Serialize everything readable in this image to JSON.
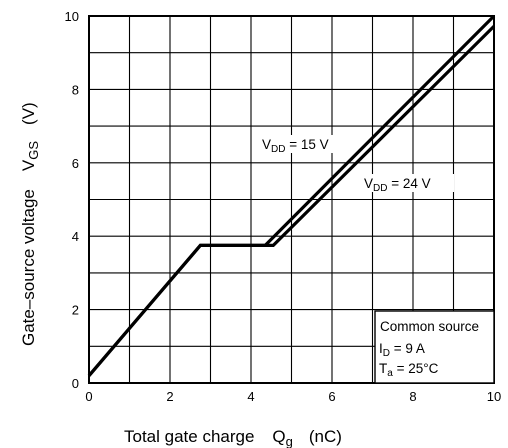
{
  "chart_data": {
    "type": "line",
    "xlabel": "Total gate charge",
    "xsymbol": {
      "main": "Q",
      "sub": "g"
    },
    "xunit": "(nC)",
    "ylabel": "Gate–source voltage",
    "ysymbol": {
      "main": "V",
      "sub": "GS"
    },
    "yunit": "(V)",
    "xlim": [
      0,
      10
    ],
    "ylim": [
      0,
      10
    ],
    "xticks": [
      0,
      2,
      4,
      6,
      8,
      10
    ],
    "yticks": [
      0,
      2,
      4,
      6,
      8,
      10
    ],
    "grid": true,
    "grid_step_x": 1,
    "grid_step_y": 1,
    "series": [
      {
        "id": "vdd15",
        "label": {
          "main": "V",
          "sub": "DD",
          "rest": " = 15 V"
        },
        "points": [
          [
            0,
            0.2
          ],
          [
            2.75,
            3.75
          ],
          [
            4.35,
            3.75
          ],
          [
            10,
            10.0
          ]
        ]
      },
      {
        "id": "vdd24",
        "label": {
          "main": "V",
          "sub": "DD",
          "rest": " = 24 V"
        },
        "points": [
          [
            0,
            0.2
          ],
          [
            2.75,
            3.75
          ],
          [
            4.55,
            3.75
          ],
          [
            10,
            9.72
          ]
        ]
      }
    ],
    "conditions": {
      "line1": "Common source",
      "line2": {
        "main": "I",
        "sub": "D",
        "rest": " = 9 A"
      },
      "line3": {
        "main": "T",
        "sub": "a",
        "rest": " = 25°C"
      }
    }
  }
}
